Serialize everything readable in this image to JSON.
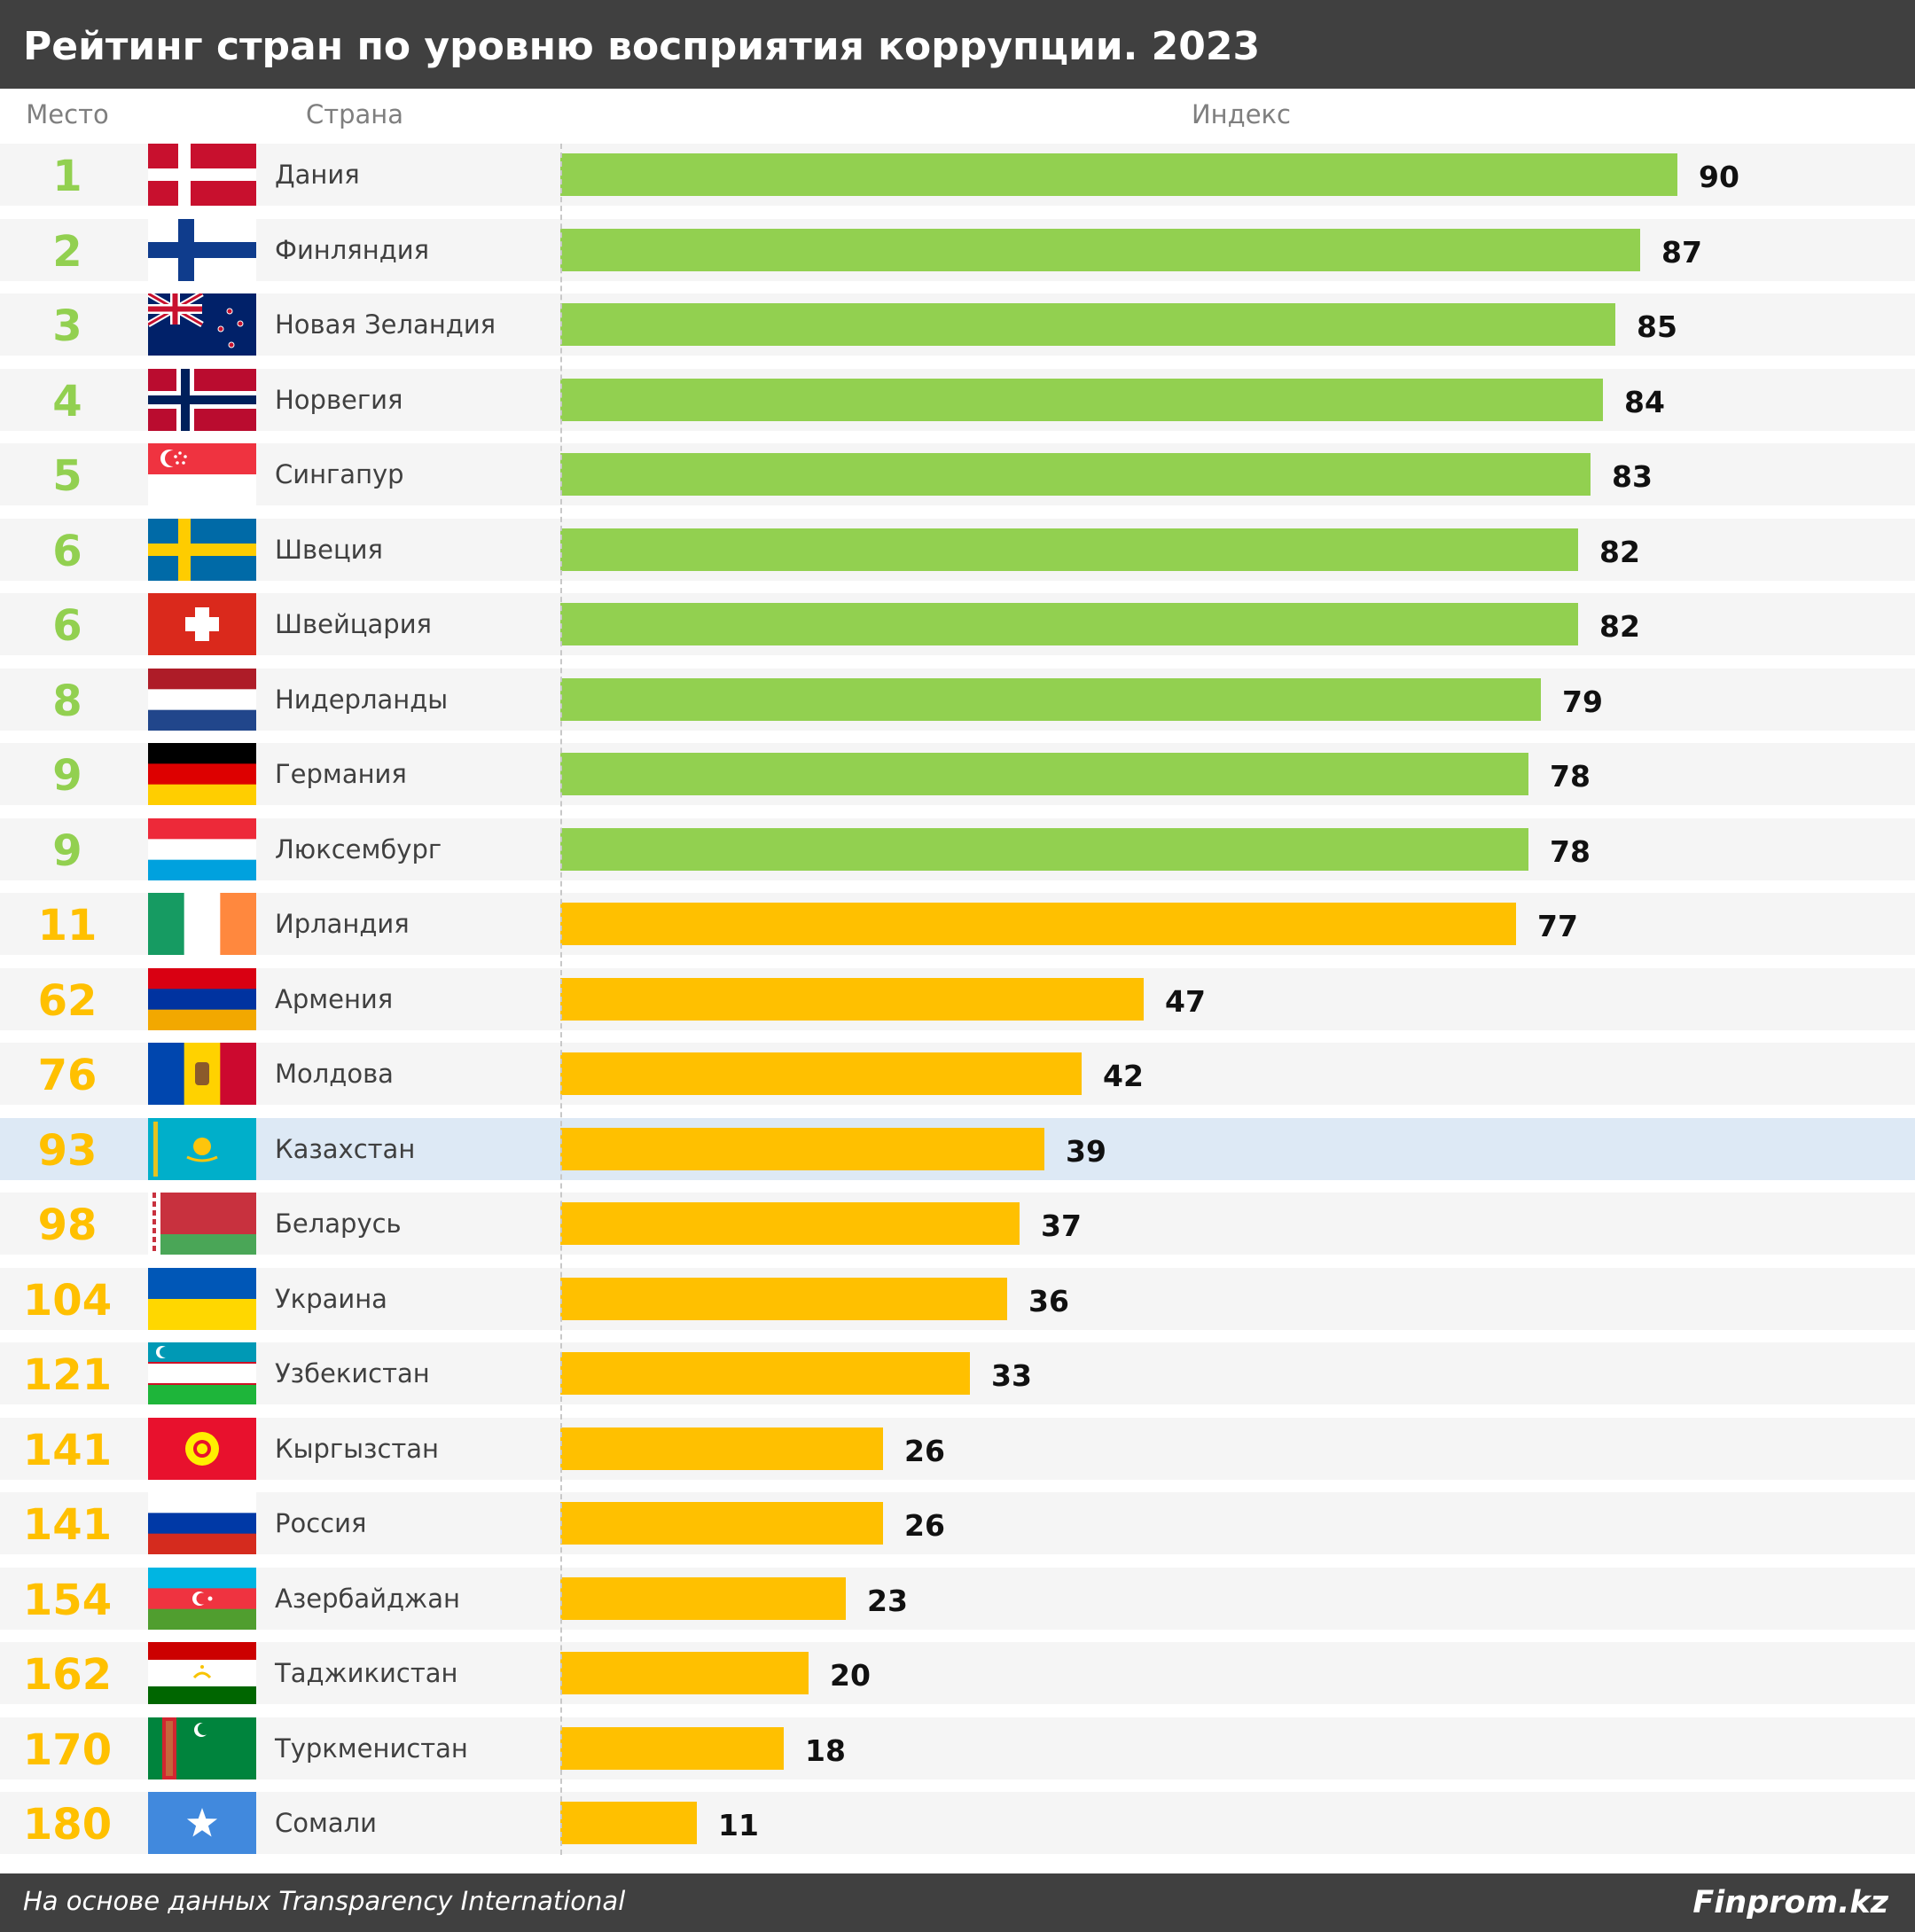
{
  "header": {
    "title": "Рейтинг стран по уровню восприятия коррупции. 2023"
  },
  "columns": {
    "rank": "Место",
    "country": "Страна",
    "index": "Индекс"
  },
  "colors": {
    "top_group": "#92d050",
    "other_group": "#ffc000",
    "highlight_row": "#dde9f5"
  },
  "highlight_country": "Казахстан",
  "chart_data": {
    "type": "bar",
    "orientation": "horizontal",
    "title": "Рейтинг стран по уровню восприятия коррупции. 2023",
    "xlim": [
      0,
      100
    ],
    "categories": [
      "Дания",
      "Финляндия",
      "Новая Зеландия",
      "Норвегия",
      "Сингапур",
      "Швеция",
      "Швейцария",
      "Нидерланды",
      "Германия",
      "Люксембург",
      "Ирландия",
      "Армения",
      "Молдова",
      "Казахстан",
      "Беларусь",
      "Украина",
      "Узбекистан",
      "Кыргызстан",
      "Россия",
      "Азербайджан",
      "Таджикистан",
      "Туркменистан",
      "Сомали"
    ],
    "ranks": [
      "1",
      "2",
      "3",
      "4",
      "5",
      "6",
      "6",
      "8",
      "9",
      "9",
      "11",
      "62",
      "76",
      "93",
      "98",
      "104",
      "121",
      "141",
      "141",
      "154",
      "162",
      "170",
      "180"
    ],
    "values": [
      90,
      87,
      85,
      84,
      83,
      82,
      82,
      79,
      78,
      78,
      77,
      47,
      42,
      39,
      37,
      36,
      33,
      26,
      26,
      23,
      20,
      18,
      11
    ],
    "flags": [
      "denmark-flag",
      "finland-flag",
      "new-zealand-flag",
      "norway-flag",
      "singapore-flag",
      "sweden-flag",
      "switzerland-flag",
      "netherlands-flag",
      "germany-flag",
      "luxembourg-flag",
      "ireland-flag",
      "armenia-flag",
      "moldova-flag",
      "kazakhstan-flag",
      "belarus-flag",
      "ukraine-flag",
      "uzbekistan-flag",
      "kyrgyzstan-flag",
      "russia-flag",
      "azerbaijan-flag",
      "tajikistan-flag",
      "turkmenistan-flag",
      "somalia-flag"
    ],
    "groups": [
      "top",
      "top",
      "top",
      "top",
      "top",
      "top",
      "top",
      "top",
      "top",
      "top",
      "other",
      "other",
      "other",
      "other",
      "other",
      "other",
      "other",
      "other",
      "other",
      "other",
      "other",
      "other",
      "other"
    ]
  },
  "footer": {
    "source": "На основе данных Transparency International",
    "brand": "Finprom.kz"
  }
}
